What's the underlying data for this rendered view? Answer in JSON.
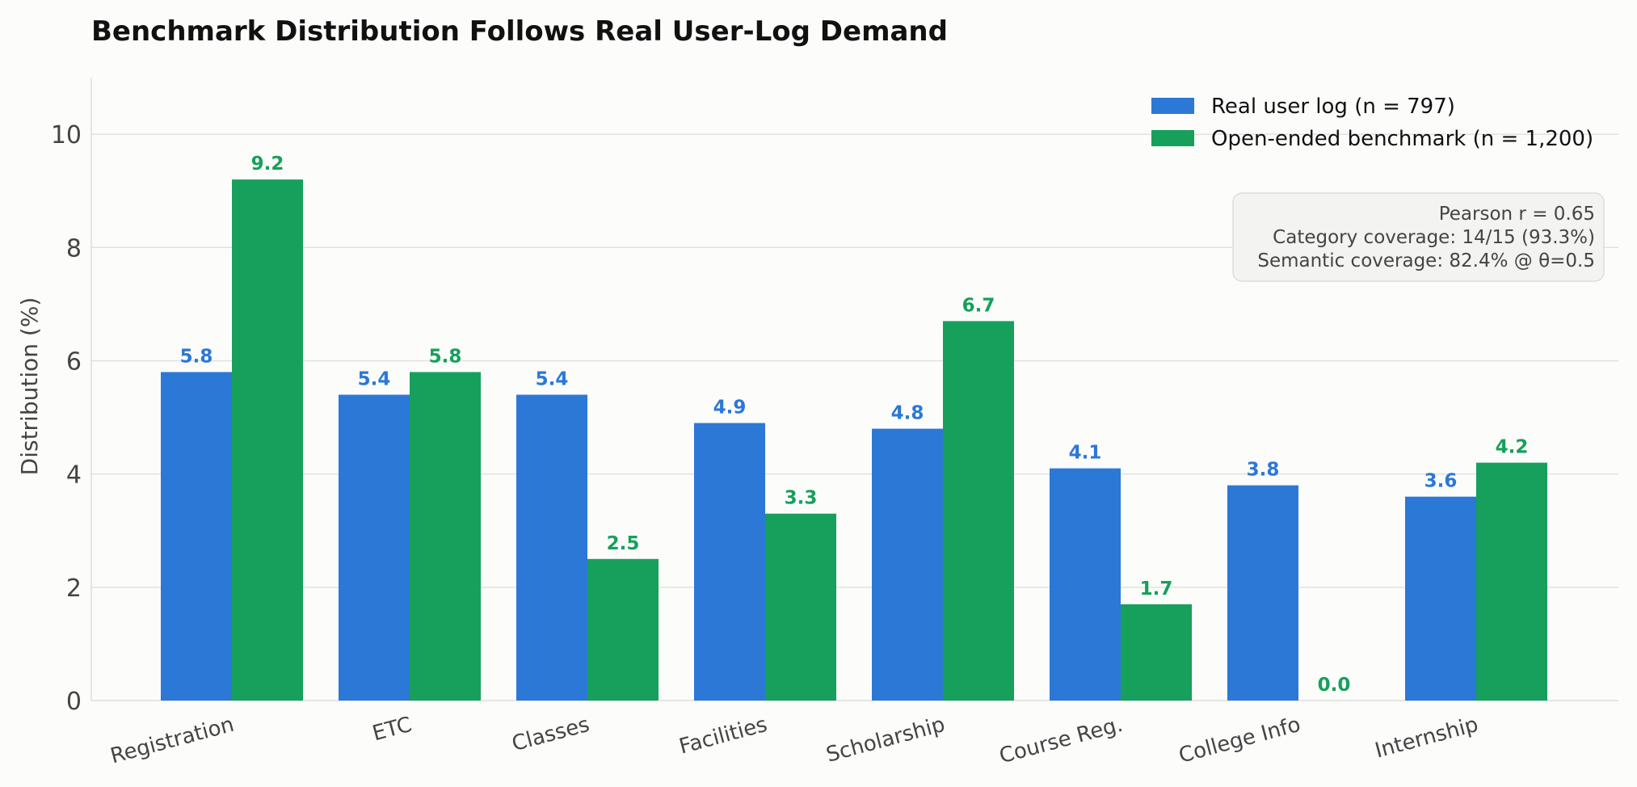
{
  "chart_data": {
    "type": "bar",
    "title": "Benchmark Distribution Follows Real User-Log Demand",
    "xlabel": "",
    "ylabel": "Distribution (%)",
    "ylim": [
      0,
      11
    ],
    "yticks": [
      0,
      2,
      4,
      6,
      8,
      10
    ],
    "grid": "y",
    "legend_position": "top-right",
    "categories": [
      "Registration",
      "ETC",
      "Classes",
      "Facilities",
      "Scholarship",
      "Course Reg.",
      "College Info",
      "Internship"
    ],
    "series": [
      {
        "name": "Real user log  (n = 797)",
        "color": "#2b78d6",
        "values": [
          5.8,
          5.4,
          5.4,
          4.9,
          4.8,
          4.1,
          3.8,
          3.6
        ]
      },
      {
        "name": "Open-ended benchmark  (n = 1,200)",
        "color": "#16a05c",
        "values": [
          9.2,
          5.8,
          2.5,
          3.3,
          6.7,
          1.7,
          0.0,
          4.2
        ]
      }
    ],
    "stats": [
      "Pearson r = 0.65",
      "Category coverage: 14/15 (93.3%)",
      "Semantic coverage: 82.4% @ θ=0.5"
    ]
  }
}
